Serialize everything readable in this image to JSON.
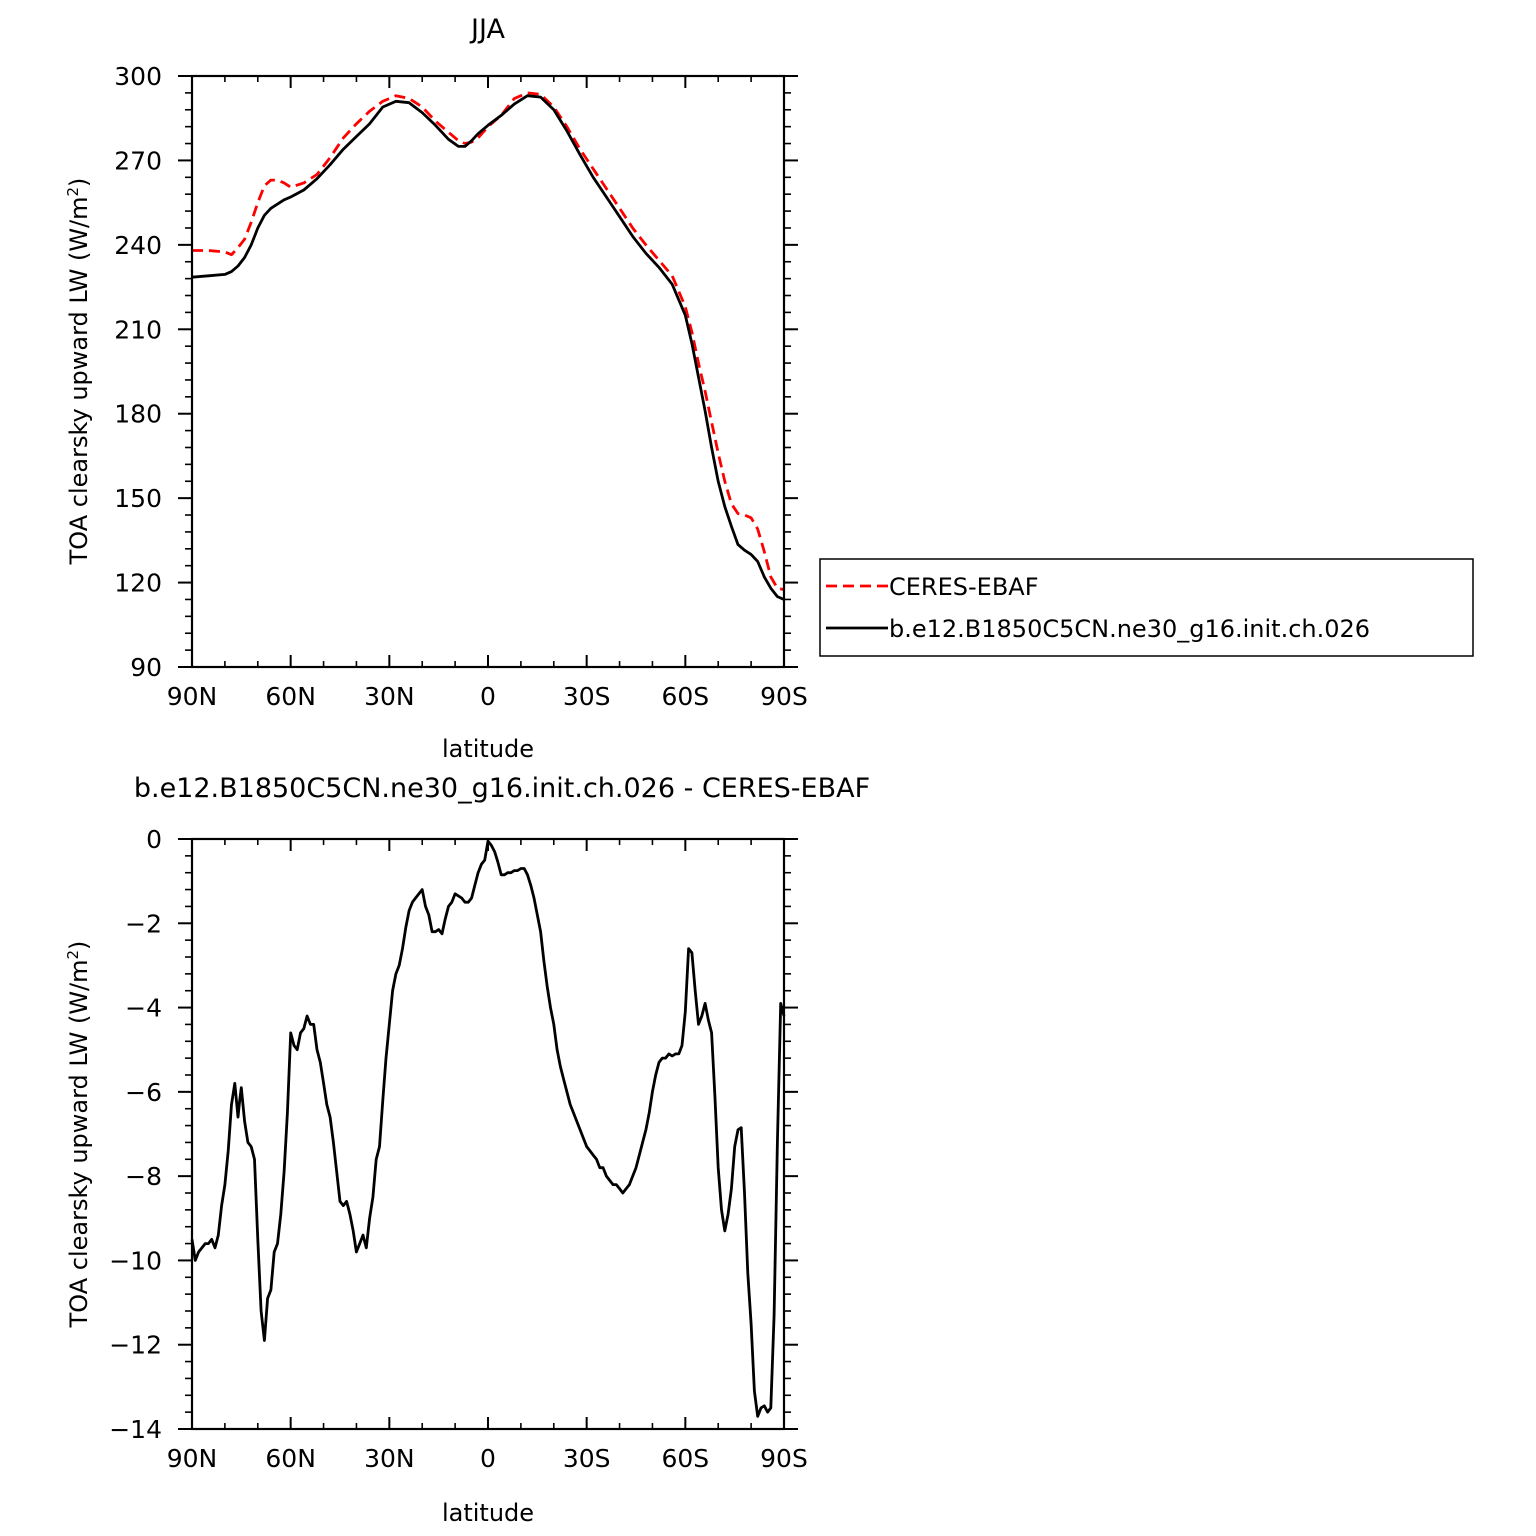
{
  "chart_data": [
    {
      "type": "line",
      "title": "JJA",
      "xlabel": "latitude",
      "ylabel_main": "TOA clearsky upward LW (W/m",
      "ylabel_sup": "2",
      "ylabel_close": ")",
      "xlim": [
        90,
        -90
      ],
      "ylim": [
        90,
        300
      ],
      "x_ticks": [
        90,
        60,
        30,
        0,
        -30,
        -60,
        -90
      ],
      "x_tick_labels": [
        "90N",
        "60N",
        "30N",
        "0",
        "30S",
        "60S",
        "90S"
      ],
      "y_ticks": [
        90,
        120,
        150,
        180,
        210,
        240,
        270,
        300
      ],
      "y_tick_labels": [
        "90",
        "120",
        "150",
        "180",
        "210",
        "240",
        "270",
        "300"
      ],
      "legend": {
        "position": "right",
        "entries": [
          "CERES-EBAF",
          "b.e12.B1850C5CN.ne30_g16.init.ch.026"
        ]
      },
      "series": [
        {
          "name": "CERES-EBAF",
          "color": "#ff0000",
          "dash": "dashed",
          "x": [
            90,
            85,
            80,
            78,
            76,
            74,
            72,
            70,
            68,
            66,
            64,
            62,
            60,
            56,
            52,
            48,
            44,
            40,
            36,
            32,
            28,
            24,
            20,
            16,
            12,
            9,
            7,
            5,
            3,
            0,
            -4,
            -8,
            -12,
            -16,
            -20,
            -24,
            -28,
            -32,
            -36,
            -40,
            -44,
            -48,
            -52,
            -56,
            -60,
            -62,
            -64,
            -66,
            -68,
            -70,
            -72,
            -74,
            -76,
            -78,
            -80,
            -82,
            -84,
            -86,
            -88,
            -90
          ],
          "y": [
            238,
            238,
            237.5,
            236.5,
            239,
            242,
            248,
            255,
            261,
            263,
            263,
            262,
            260.5,
            262,
            265,
            271,
            278,
            283,
            287.5,
            291,
            293,
            292,
            289,
            284,
            280,
            277,
            276,
            276.5,
            278,
            282,
            286,
            292,
            294,
            293.5,
            289,
            282,
            274,
            267,
            260,
            253,
            246,
            240,
            234.5,
            229,
            218,
            209,
            198,
            188,
            177,
            166,
            156,
            148,
            144.5,
            144,
            143,
            139,
            131,
            122,
            118,
            117.5
          ]
        },
        {
          "name": "b.e12.B1850C5CN.ne30_g16.init.ch.026",
          "color": "#000000",
          "dash": "solid",
          "x": [
            90,
            85,
            80,
            78,
            76,
            74,
            72,
            70,
            68,
            66,
            64,
            62,
            60,
            56,
            52,
            48,
            44,
            40,
            36,
            32,
            28,
            24,
            20,
            16,
            12,
            9,
            7,
            5,
            3,
            0,
            -4,
            -8,
            -12,
            -16,
            -20,
            -24,
            -28,
            -32,
            -36,
            -40,
            -44,
            -48,
            -52,
            -56,
            -60,
            -62,
            -64,
            -66,
            -68,
            -70,
            -72,
            -74,
            -76,
            -78,
            -80,
            -82,
            -84,
            -86,
            -88,
            -90
          ],
          "y": [
            228.5,
            229,
            229.5,
            230.5,
            232.5,
            235.5,
            240,
            246,
            250.5,
            253,
            254.5,
            256,
            257,
            259.5,
            263.5,
            268.5,
            274,
            278.5,
            283,
            289,
            291,
            290.5,
            287,
            282.5,
            277.5,
            275,
            275,
            277,
            279.5,
            282.5,
            286,
            290,
            293,
            292.5,
            288,
            280.5,
            272,
            264,
            257,
            250,
            243,
            237,
            232,
            226,
            215,
            205,
            193,
            181,
            168,
            156,
            147,
            140,
            133.5,
            131.5,
            130,
            127.5,
            122,
            118,
            115,
            114
          ]
        }
      ]
    },
    {
      "type": "line",
      "title": "b.e12.B1850C5CN.ne30_g16.init.ch.026 - CERES-EBAF",
      "xlabel": "latitude",
      "ylabel_main": "TOA clearsky upward LW (W/m",
      "ylabel_sup": "2",
      "ylabel_close": ")",
      "xlim": [
        90,
        -90
      ],
      "ylim": [
        -14,
        0
      ],
      "x_ticks": [
        90,
        60,
        30,
        0,
        -30,
        -60,
        -90
      ],
      "x_tick_labels": [
        "90N",
        "60N",
        "30N",
        "0",
        "30S",
        "60S",
        "90S"
      ],
      "y_ticks": [
        -14,
        -12,
        -10,
        -8,
        -6,
        -4,
        -2,
        0
      ],
      "y_tick_labels": [
        "−14",
        "−12",
        "−10",
        "−8",
        "−6",
        "−4",
        "−2",
        "0"
      ],
      "series": [
        {
          "color": "#000000",
          "dash": "solid",
          "x": [
            90,
            89,
            88,
            86,
            85,
            84,
            83,
            82,
            81,
            80,
            79,
            78,
            77,
            76,
            75.5,
            75,
            74,
            73,
            72,
            71,
            70,
            69,
            68,
            67,
            66,
            65,
            64,
            63,
            62,
            61,
            60,
            59,
            58,
            57,
            56,
            55,
            54,
            53,
            52,
            51,
            50,
            49,
            48,
            47,
            46,
            45,
            44,
            43,
            42,
            41,
            40,
            39,
            38,
            37,
            36,
            35,
            34,
            33,
            32,
            31,
            30,
            29,
            28,
            27,
            26,
            25,
            24,
            23,
            22,
            21,
            20,
            19,
            18,
            17,
            16,
            15,
            14,
            13,
            12,
            11,
            10,
            9,
            8,
            7,
            6,
            5,
            4,
            3,
            2,
            1,
            0,
            -1,
            -2,
            -3,
            -4,
            -5,
            -6,
            -7,
            -8,
            -9,
            -10,
            -11,
            -12,
            -13,
            -14,
            -15,
            -16,
            -17,
            -18,
            -19,
            -20,
            -21,
            -22,
            -23,
            -24,
            -25,
            -26,
            -27,
            -28,
            -29,
            -30,
            -31,
            -32,
            -33,
            -34,
            -35,
            -36,
            -37,
            -38,
            -39,
            -40,
            -41,
            -42,
            -43,
            -44,
            -45,
            -46,
            -47,
            -48,
            -49,
            -50,
            -51,
            -52,
            -53,
            -54,
            -55,
            -56,
            -57,
            -58,
            -59,
            -60,
            -61,
            -62,
            -63,
            -64,
            -65,
            -66,
            -67,
            -68,
            -69,
            -70,
            -71,
            -72,
            -73,
            -74,
            -75,
            -76,
            -77,
            -78,
            -79,
            -80,
            -81,
            -82,
            -83,
            -84,
            -85,
            -86,
            -87,
            -88,
            -89,
            -90
          ],
          "y": [
            -9.5,
            -10,
            -9.8,
            -9.6,
            -9.6,
            -9.5,
            -9.7,
            -9.4,
            -8.7,
            -8.2,
            -7.4,
            -6.3,
            -5.8,
            -6.6,
            -6.2,
            -5.9,
            -6.7,
            -7.2,
            -7.3,
            -7.6,
            -9.5,
            -11.2,
            -11.9,
            -10.9,
            -10.7,
            -9.8,
            -9.6,
            -8.9,
            -7.9,
            -6.5,
            -4.6,
            -4.9,
            -5,
            -4.6,
            -4.5,
            -4.2,
            -4.4,
            -4.4,
            -5,
            -5.3,
            -5.8,
            -6.3,
            -6.6,
            -7.2,
            -7.9,
            -8.6,
            -8.7,
            -8.6,
            -8.9,
            -9.3,
            -9.8,
            -9.6,
            -9.4,
            -9.7,
            -9,
            -8.5,
            -7.6,
            -7.3,
            -6.2,
            -5.2,
            -4.4,
            -3.6,
            -3.2,
            -3,
            -2.6,
            -2.1,
            -1.7,
            -1.5,
            -1.4,
            -1.3,
            -1.2,
            -1.6,
            -1.8,
            -2.2,
            -2.2,
            -2.15,
            -2.25,
            -1.9,
            -1.6,
            -1.5,
            -1.3,
            -1.35,
            -1.4,
            -1.5,
            -1.5,
            -1.4,
            -1.1,
            -0.8,
            -0.6,
            -0.5,
            -0.05,
            -0.15,
            -0.3,
            -0.55,
            -0.85,
            -0.85,
            -0.8,
            -0.8,
            -0.75,
            -0.75,
            -0.7,
            -0.7,
            -0.85,
            -1.1,
            -1.4,
            -1.8,
            -2.2,
            -2.9,
            -3.5,
            -4,
            -4.4,
            -5,
            -5.4,
            -5.7,
            -6,
            -6.3,
            -6.5,
            -6.7,
            -6.9,
            -7.1,
            -7.3,
            -7.4,
            -7.5,
            -7.6,
            -7.8,
            -7.8,
            -8,
            -8.1,
            -8.2,
            -8.2,
            -8.3,
            -8.4,
            -8.3,
            -8.2,
            -8,
            -7.8,
            -7.5,
            -7.2,
            -6.9,
            -6.5,
            -6,
            -5.6,
            -5.3,
            -5.2,
            -5.2,
            -5.1,
            -5.15,
            -5.1,
            -5.1,
            -4.9,
            -4.1,
            -2.6,
            -2.7,
            -3.6,
            -4.4,
            -4.2,
            -3.9,
            -4.3,
            -4.6,
            -6.1,
            -7.8,
            -8.8,
            -9.3,
            -8.9,
            -8.3,
            -7.3,
            -6.9,
            -6.85,
            -8.4,
            -10.3,
            -11.5,
            -13.1,
            -13.7,
            -13.5,
            -13.45,
            -13.6,
            -13.5,
            -11.3,
            -7.2,
            -3.9,
            -4.2
          ]
        }
      ]
    }
  ]
}
